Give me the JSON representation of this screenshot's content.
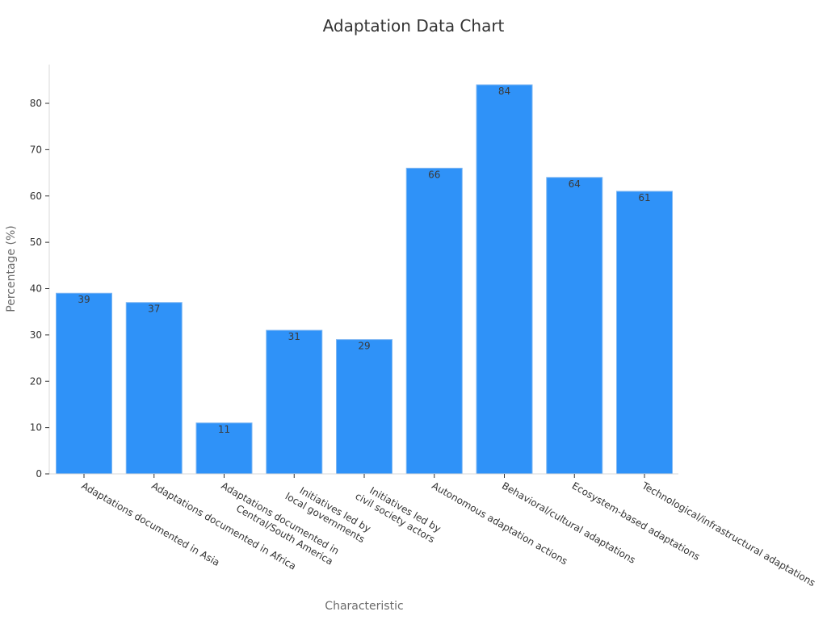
{
  "chart_data": {
    "type": "bar",
    "title": "Adaptation Data Chart",
    "xlabel": "Characteristic",
    "ylabel": "Percentage (%)",
    "ylim": [
      0,
      88
    ],
    "yticks": [
      0,
      10,
      20,
      30,
      40,
      50,
      60,
      70,
      80
    ],
    "grid": false,
    "bar_color": "#2f92f8",
    "categories": [
      [
        "Adaptations documented in Asia"
      ],
      [
        "Adaptations documented in Africa"
      ],
      [
        "Adaptations documented in",
        "Central/South America"
      ],
      [
        "Initiatives led by",
        "local governments"
      ],
      [
        "Initiatives led by",
        "civil society actors"
      ],
      [
        "Autonomous adaptation actions"
      ],
      [
        "Behavioral/cultural adaptations"
      ],
      [
        "Ecosystem-based adaptations"
      ],
      [
        "Technological/infrastructural adaptations"
      ]
    ],
    "values": [
      39,
      37,
      11,
      31,
      29,
      66,
      84,
      64,
      61
    ]
  }
}
